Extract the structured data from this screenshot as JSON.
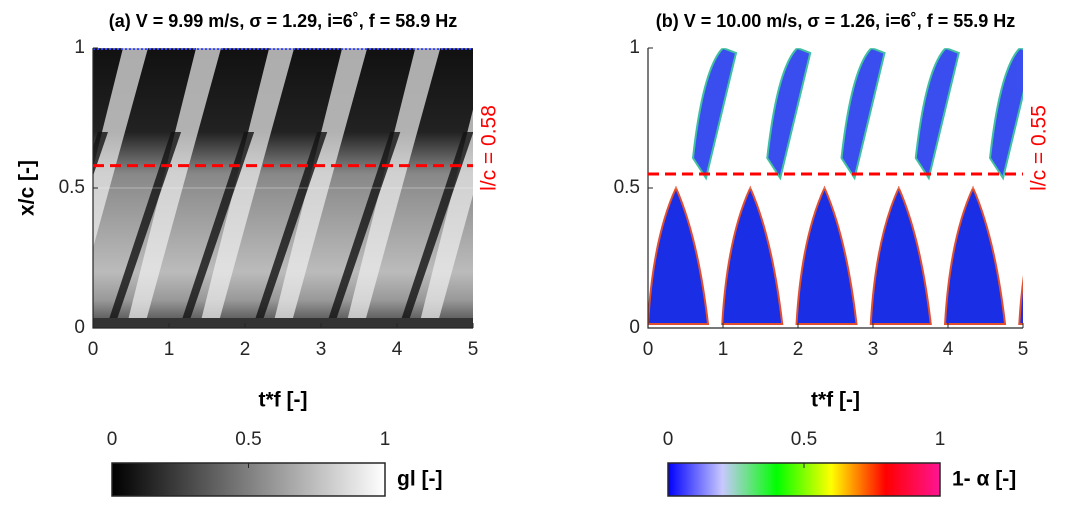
{
  "chart_data": [
    {
      "type": "heatmap",
      "title": "(a) V = 9.99 m/s, σ = 1.29, i=6˚, f = 58.9 Hz",
      "xlabel": "t*f [-]",
      "ylabel": "x/c [-]",
      "xlim": [
        0,
        5
      ],
      "xticks": [
        0,
        1,
        2,
        3,
        4,
        5
      ],
      "ylim": [
        0,
        1
      ],
      "yticks": [
        0,
        0.5,
        1
      ],
      "grid": true,
      "reference_line": {
        "value": 0.58,
        "label": "l/c = 0.58",
        "color": "#ff0000"
      },
      "colorbar": {
        "label": "gl [-]",
        "lim": [
          0,
          1
        ],
        "ticks": [
          0,
          0.5,
          1
        ],
        "colors": [
          "#000000",
          "#ffffff"
        ]
      }
    },
    {
      "type": "heatmap",
      "title": "(b) V = 10.00 m/s, σ = 1.26, i=6˚, f = 55.9 Hz",
      "xlabel": "t*f [-]",
      "xlim": [
        0,
        5
      ],
      "xticks": [
        0,
        1,
        2,
        3,
        4,
        5
      ],
      "ylim": [
        0,
        1
      ],
      "yticks": [
        0,
        0.5,
        1
      ],
      "grid": true,
      "reference_line": {
        "value": 0.55,
        "label": "l/c = 0.55",
        "color": "#ff0000"
      },
      "colorbar": {
        "label": "1- α [-]",
        "lim": [
          0,
          1
        ],
        "ticks": [
          0,
          0.5,
          1
        ],
        "colors": [
          "#0000ff",
          "#c8c8ff",
          "#00ff00",
          "#ffff00",
          "#ff0000",
          "#ff1493"
        ]
      }
    }
  ]
}
